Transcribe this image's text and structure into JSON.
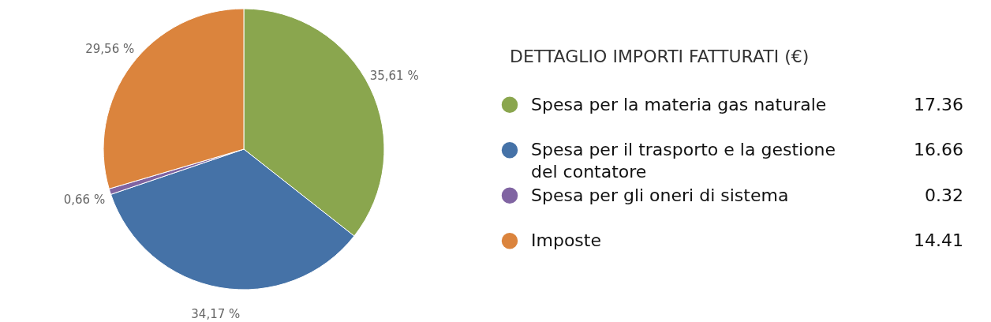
{
  "chart_data": {
    "type": "pie",
    "legend_title": "DETTAGLIO IMPORTI FATTURATI (€)",
    "legend": "right",
    "categories": [
      "Spesa per la materia gas naturale",
      "Spesa per il trasporto e la gestione del contatore",
      "Spesa per gli oneri di sistema",
      "Imposte"
    ],
    "values": [
      35.61,
      34.17,
      0.66,
      29.56
    ],
    "colors": [
      "#8aa64e",
      "#4572a7",
      "#8064a2",
      "#db843d"
    ],
    "value_labels": [
      "35,61 %",
      "34,17 %",
      "0,66 %",
      "29,56 %"
    ],
    "annotations": [
      "17.36",
      "16.66",
      "0.32",
      "14.41"
    ]
  }
}
